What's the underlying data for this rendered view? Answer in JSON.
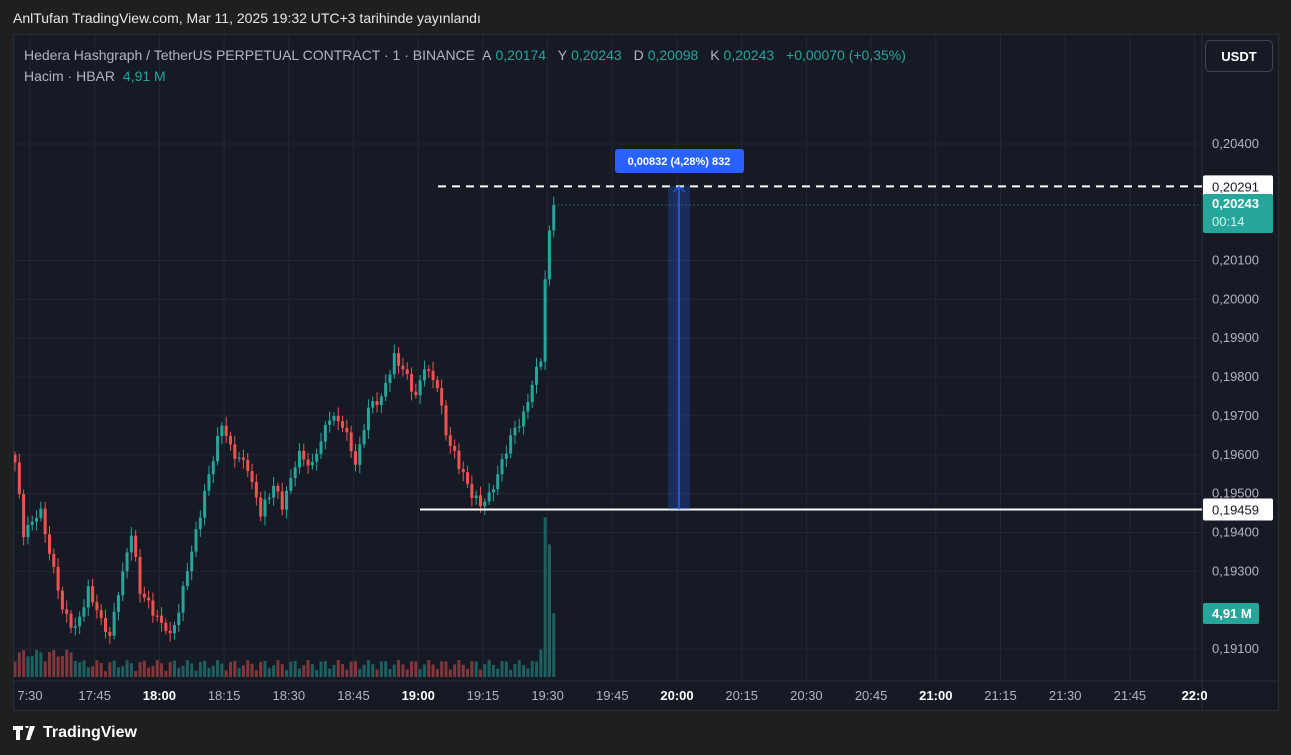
{
  "published": "AnlTufan TradingView.com, Mar 11, 2025 19:32 UTC+3 tarihinde yayınlandı",
  "legend": {
    "symbol": "Hedera Hashgraph / TetherUS PERPETUAL CONTRACT · 1 · BINANCE",
    "open_label": "A",
    "open": "0,20174",
    "high_label": "Y",
    "high": "0,20243",
    "low_label": "D",
    "low": "0,20098",
    "close_label": "K",
    "close": "0,20243",
    "change": "+0,00070 (+0,35%)",
    "volume_label": "Hacim · HBAR",
    "volume": "4,91 M"
  },
  "currency_button": "USDT",
  "footer_brand": "TradingView",
  "colors": {
    "up": "#26a69a",
    "down": "#ef5350",
    "bg": "#161a25",
    "measure": "#2962ff"
  },
  "chart_data": {
    "type": "candlestick",
    "interval_minutes": 1,
    "start_time": "17:27",
    "close_anchors": [
      [
        0,
        0.1958
      ],
      [
        2,
        0.194
      ],
      [
        6,
        0.1945
      ],
      [
        8,
        0.1935
      ],
      [
        11,
        0.192
      ],
      [
        14,
        0.1915
      ],
      [
        17,
        0.1925
      ],
      [
        20,
        0.1918
      ],
      [
        22,
        0.1913
      ],
      [
        24,
        0.1925
      ],
      [
        27,
        0.194
      ],
      [
        29,
        0.1925
      ],
      [
        33,
        0.1918
      ],
      [
        36,
        0.1913
      ],
      [
        38,
        0.192
      ],
      [
        41,
        0.1935
      ],
      [
        43,
        0.1945
      ],
      [
        45,
        0.1955
      ],
      [
        48,
        0.1968
      ],
      [
        51,
        0.196
      ],
      [
        54,
        0.1957
      ],
      [
        57,
        0.1945
      ],
      [
        60,
        0.1952
      ],
      [
        62,
        0.1947
      ],
      [
        66,
        0.196
      ],
      [
        69,
        0.1957
      ],
      [
        73,
        0.197
      ],
      [
        76,
        0.1968
      ],
      [
        79,
        0.1958
      ],
      [
        82,
        0.1972
      ],
      [
        85,
        0.1975
      ],
      [
        88,
        0.1985
      ],
      [
        90,
        0.1982
      ],
      [
        93,
        0.1975
      ],
      [
        95,
        0.1982
      ],
      [
        98,
        0.1978
      ],
      [
        100,
        0.1965
      ],
      [
        104,
        0.1955
      ],
      [
        106,
        0.195
      ],
      [
        108,
        0.1947
      ],
      [
        111,
        0.1952
      ],
      [
        113,
        0.1958
      ],
      [
        115,
        0.1965
      ],
      [
        118,
        0.197
      ],
      [
        120,
        0.1978
      ],
      [
        122,
        0.1985
      ],
      [
        123,
        0.2005
      ],
      [
        124,
        0.2017
      ],
      [
        125,
        0.2024
      ]
    ],
    "last_volumes_millions": [
      2.1,
      12.3,
      10.2,
      4.91
    ],
    "y_ticks": [
      "0,20400",
      "0,20100",
      "0,20000",
      "0,19900",
      "0,19800",
      "0,19700",
      "0,19600",
      "0,19500",
      "0,19400",
      "0,19300",
      "0,19100"
    ],
    "y_tick_values": [
      0.204,
      0.201,
      0.2,
      0.199,
      0.198,
      0.197,
      0.196,
      0.195,
      0.194,
      0.193,
      0.191
    ],
    "x_ticks": [
      "7:30",
      "17:45",
      "18:00",
      "18:15",
      "18:30",
      "18:45",
      "19:00",
      "19:15",
      "19:30",
      "19:45",
      "20:00",
      "20:15",
      "20:30",
      "20:45",
      "21:00",
      "21:15",
      "21:30",
      "21:45",
      "22:0"
    ],
    "x_ticks_bold": [
      "18:00",
      "19:00",
      "20:00",
      "21:00",
      "22:0"
    ],
    "price_labels": {
      "upper_line": "0,20291",
      "upper_value": 0.20291,
      "current": "0,20243",
      "current_value": 0.20243,
      "countdown": "00:14",
      "lower_line": "0,19459",
      "lower_value": 0.19459,
      "volume": "4,91 M"
    },
    "measure": {
      "label": "0,00832 (4,28%) 832",
      "from": 0.19459,
      "to": 0.20291
    }
  }
}
